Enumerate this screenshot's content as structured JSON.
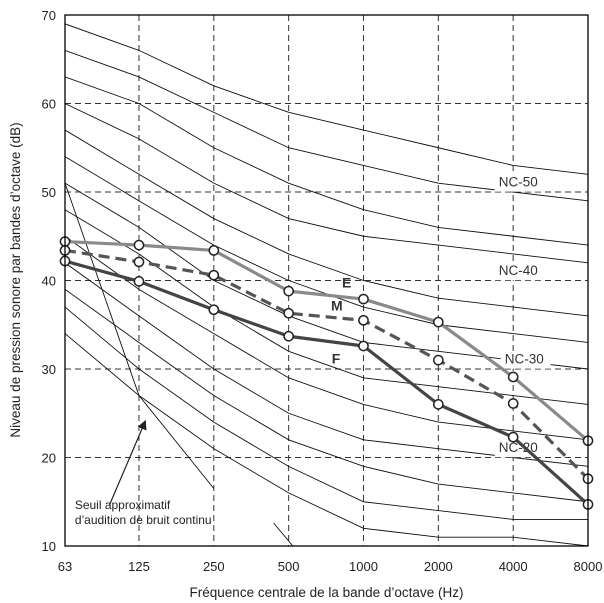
{
  "chart_data": {
    "type": "line",
    "title": "",
    "xlabel": "Fréquence centrale de la bande d’octave (Hz)",
    "ylabel": "Niveau de pression sonore par bandes d’octave (dB)",
    "x_scale": "log2",
    "x_ticks": [
      "63",
      "125",
      "250",
      "500",
      "1000",
      "2000",
      "4000",
      "8000"
    ],
    "x_values": [
      63,
      125,
      250,
      500,
      1000,
      2000,
      4000,
      8000
    ],
    "ylim": [
      10,
      70
    ],
    "y_ticks": [
      "10",
      "20",
      "30",
      "40",
      "50",
      "60",
      "70"
    ],
    "grid": "dashed",
    "series": [
      {
        "name": "E",
        "color": "#8a8a8a",
        "dashed": false,
        "values": [
          44.4,
          44.0,
          43.4,
          38.8,
          37.9,
          35.3,
          29.1,
          21.9
        ]
      },
      {
        "name": "M",
        "color": "#555555",
        "dashed": true,
        "values": [
          43.4,
          42.1,
          40.6,
          36.3,
          35.5,
          31.0,
          26.1,
          17.6
        ]
      },
      {
        "name": "F",
        "color": "#444444",
        "dashed": false,
        "values": [
          42.2,
          39.9,
          36.7,
          33.7,
          32.6,
          26.0,
          22.3,
          14.7
        ]
      }
    ],
    "nc_curves": [
      {
        "values": [
          69,
          66,
          62,
          59,
          57,
          55,
          53,
          52
        ]
      },
      {
        "values": [
          66,
          63,
          59,
          55,
          53,
          51,
          50,
          49
        ]
      },
      {
        "values": [
          63,
          60,
          55,
          51,
          48,
          46,
          45,
          44
        ]
      },
      {
        "values": [
          60,
          56,
          51,
          47,
          45,
          44,
          43,
          42
        ]
      },
      {
        "values": [
          57,
          52,
          47,
          43,
          40,
          38,
          37,
          36
        ]
      },
      {
        "values": [
          54,
          49,
          44,
          40,
          37,
          35,
          34,
          33
        ]
      },
      {
        "values": [
          51,
          46,
          40,
          36,
          33,
          32,
          31,
          30
        ]
      },
      {
        "values": [
          48,
          43,
          37,
          32,
          29,
          28,
          27,
          26
        ]
      },
      {
        "values": [
          45,
          39,
          34,
          29,
          26,
          24,
          23,
          22
        ]
      },
      {
        "values": [
          42,
          36,
          30,
          25,
          22,
          21,
          20,
          19
        ]
      },
      {
        "values": [
          39,
          33,
          27,
          22,
          19,
          17,
          16,
          15
        ]
      },
      {
        "values": [
          37,
          30,
          24,
          19,
          15,
          14,
          13,
          13
        ]
      },
      {
        "values": [
          34,
          27,
          21,
          16,
          12,
          11,
          11,
          10
        ]
      }
    ],
    "nc_labels": [
      {
        "text": "NC-50",
        "x": 3500,
        "y": 50.6
      },
      {
        "text": "NC-40",
        "x": 3500,
        "y": 40.6
      },
      {
        "text": "NC-30",
        "x": 3700,
        "y": 30.6
      },
      {
        "text": "NC-20",
        "x": 3500,
        "y": 20.6
      }
    ],
    "threshold_curve": {
      "label_lines": [
        "Seuil approximatif",
        "d’audition de bruit continu"
      ],
      "points": [
        [
          63,
          51
        ],
        [
          125,
          27
        ],
        [
          250,
          16.5
        ]
      ],
      "tail": [
        [
          435,
          12.6
        ],
        [
          520,
          10
        ]
      ]
    },
    "series_label_positions": [
      {
        "text": "E",
        "x": 820,
        "y": 39.2
      },
      {
        "text": "M",
        "x": 740,
        "y": 36.6
      },
      {
        "text": "F",
        "x": 745,
        "y": 30.6
      }
    ],
    "arrow": {
      "from": [
        95,
        14.6
      ],
      "to": [
        132,
        24
      ]
    },
    "note_position": {
      "x": 69,
      "y": 14.2
    }
  }
}
